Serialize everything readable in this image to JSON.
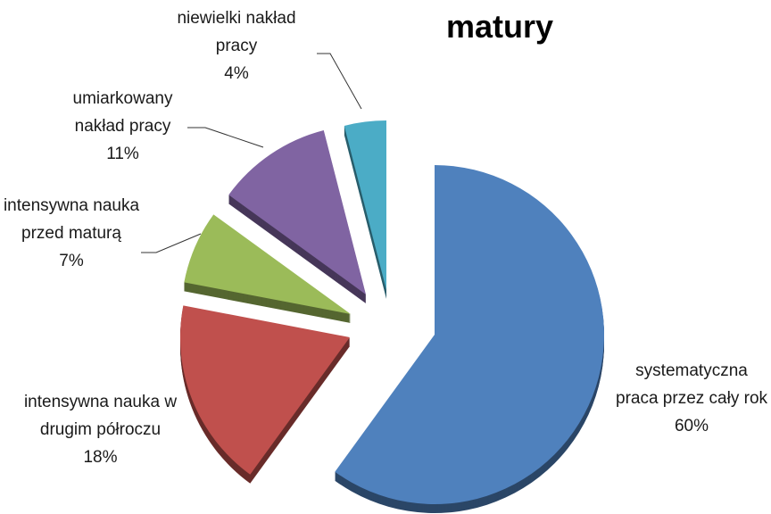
{
  "chart_data": {
    "type": "pie",
    "title": "matury",
    "categories": [
      "systematyczna praca przez cały rok",
      "intensywna nauka w drugim półroczu",
      "intensywna nauka przed maturą",
      "umiarkowany nakład pracy",
      "niewielki nakład pracy"
    ],
    "values": [
      60,
      18,
      7,
      11,
      4
    ],
    "value_labels": [
      "60%",
      "18%",
      "7%",
      "11%",
      "4%"
    ],
    "colors": [
      "#4f81bd",
      "#c0504d",
      "#9bbb59",
      "#8064a2",
      "#4bacc6"
    ]
  }
}
